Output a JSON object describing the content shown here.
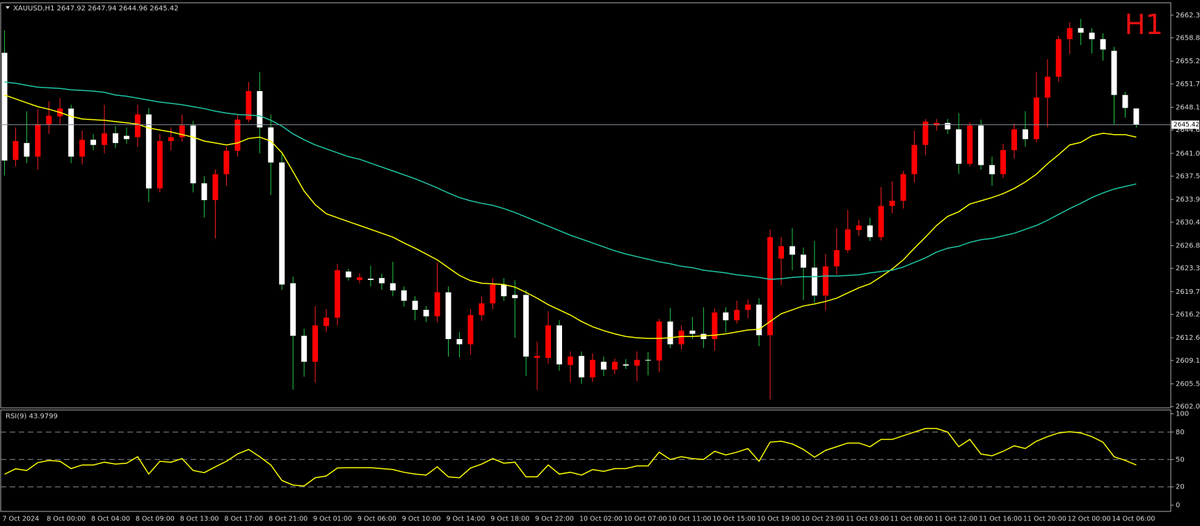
{
  "chart_data": [
    {
      "type": "candlestick",
      "title": "XAUUSD,H1  2647.92 2647.94 2644.96 2645.42",
      "timeframe_label": "H1",
      "categories": [
        "7 Oct 2024",
        null,
        null,
        null,
        "8 Oct 00:00",
        null,
        null,
        null,
        "8 Oct 04:00",
        null,
        null,
        null,
        "8 Oct 09:00",
        null,
        null,
        null,
        "8 Oct 13:00",
        null,
        null,
        null,
        "8 Oct 17:00",
        null,
        null,
        null,
        "8 Oct 21:00",
        null,
        null,
        null,
        "9 Oct 01:00",
        null,
        null,
        null,
        "9 Oct 06:00",
        null,
        null,
        null,
        "9 Oct 10:00",
        null,
        null,
        null,
        "9 Oct 14:00",
        null,
        null,
        null,
        "9 Oct 18:00",
        null,
        null,
        null,
        "9 Oct 22:00",
        null,
        null,
        null,
        "10 Oct 02:00",
        null,
        null,
        null,
        "10 Oct 07:00",
        null,
        null,
        null,
        "10 Oct 11:00",
        null,
        null,
        null,
        "10 Oct 15:00",
        null,
        null,
        null,
        "10 Oct 19:00",
        null,
        null,
        null,
        "10 Oct 23:00",
        null,
        null,
        null,
        "11 Oct 03:00",
        null,
        null,
        null,
        "11 Oct 08:00",
        null,
        null,
        null,
        "11 Oct 12:00",
        null,
        null,
        null,
        "11 Oct 16:00",
        null,
        null,
        null,
        "11 Oct 20:00",
        null,
        null,
        null,
        "12 Oct 00:00",
        null,
        null,
        null,
        "14 Oct 06:00",
        null,
        null
      ],
      "open": [
        2656.5,
        2640.0,
        2642.6,
        2640.5,
        2645.5,
        2646.7,
        2647.9,
        2640.5,
        2643.1,
        2642.3,
        2644.1,
        2643.7,
        2643.5,
        2647.0,
        2635.6,
        2642.9,
        2643.5,
        2645.3,
        2636.4,
        2633.8,
        2637.8,
        2641.4,
        2646.2,
        2650.6,
        2645.0,
        2639.6,
        2621.0,
        2612.9,
        2608.9,
        2614.4,
        2615.7,
        2622.8,
        2621.5,
        2621.7,
        2621.8,
        2621.0,
        2619.9,
        2618.3,
        2616.9,
        2615.9,
        2619.6,
        2612.4,
        2611.6,
        2616.1,
        2617.9,
        2620.8,
        2619.2,
        2619.2,
        2609.5,
        2609.5,
        2614.5,
        2608.4,
        2609.8,
        2606.5,
        2608.9,
        2607.7,
        2608.5,
        2608.3,
        2609.2,
        2609.1,
        2615.1,
        2611.6,
        2613.7,
        2613.2,
        2612.4,
        2616.5,
        2615.3,
        2616.9,
        2617.7,
        2613.0,
        2624.8,
        2626.7,
        2625.4,
        2623.4,
        2619.1,
        2623.6,
        2626.1,
        2629.2,
        2629.9,
        2628.1,
        2632.9,
        2633.7,
        2637.8,
        2642.3,
        2645.3,
        2645.7,
        2644.7,
        2639.4,
        2645.3,
        2639.2,
        2637.8,
        2641.5,
        2644.7,
        2643.2,
        2649.6,
        2652.8,
        2658.6,
        2660.3,
        2659.6,
        2658.6,
        2656.8,
        2650.0,
        2647.92
      ],
      "high": [
        2659.9,
        2645.0,
        2647.5,
        2647.8,
        2649.0,
        2649.5,
        2648.5,
        2644.5,
        2644.0,
        2648.5,
        2645.2,
        2645.0,
        2648.5,
        2648.0,
        2644.0,
        2645.0,
        2647.0,
        2646.0,
        2637.5,
        2638.5,
        2642.0,
        2647.0,
        2652.0,
        2653.5,
        2647.0,
        2641.0,
        2622.0,
        2614.0,
        2617.5,
        2617.0,
        2624.0,
        2623.2,
        2622.5,
        2623.7,
        2622.5,
        2624.3,
        2620.5,
        2619.0,
        2617.5,
        2624.2,
        2620.5,
        2613.5,
        2617.0,
        2619.0,
        2621.8,
        2621.8,
        2621.5,
        2620.0,
        2612.0,
        2616.7,
        2615.3,
        2610.5,
        2610.5,
        2610.2,
        2609.7,
        2609.4,
        2609.3,
        2610.5,
        2610.4,
        2615.5,
        2617.2,
        2614.5,
        2615.8,
        2617.3,
        2617.1,
        2617.3,
        2618.3,
        2618.5,
        2618.7,
        2629.3,
        2628.1,
        2629.5,
        2626.5,
        2627.5,
        2625.5,
        2629.5,
        2632.3,
        2630.8,
        2631.1,
        2635.8,
        2636.7,
        2638.3,
        2644.5,
        2646.3,
        2646.3,
        2646.3,
        2647.2,
        2645.8,
        2646.2,
        2640.5,
        2642.5,
        2645.6,
        2647.5,
        2653.5,
        2655.5,
        2659.1,
        2661.2,
        2661.7,
        2660.3,
        2659.5,
        2657.4,
        2650.5,
        2647.94
      ],
      "low": [
        2637.6,
        2639.0,
        2639.5,
        2638.5,
        2644.0,
        2645.5,
        2639.5,
        2639.3,
        2641.5,
        2641.0,
        2641.8,
        2642.5,
        2642.0,
        2633.5,
        2635.0,
        2641.5,
        2642.8,
        2635.0,
        2631.1,
        2627.9,
        2636.0,
        2640.5,
        2645.8,
        2641.0,
        2634.6,
        2620.0,
        2604.6,
        2606.6,
        2605.7,
        2613.5,
        2614.5,
        2621.4,
        2621.0,
        2620.5,
        2620.0,
        2619.0,
        2617.4,
        2615.3,
        2615.0,
        2615.0,
        2609.7,
        2609.6,
        2610.0,
        2615.2,
        2617.0,
        2618.3,
        2612.6,
        2606.7,
        2604.6,
        2608.6,
        2607.5,
        2605.7,
        2605.5,
        2605.8,
        2606.7,
        2607.0,
        2607.8,
        2605.9,
        2606.8,
        2607.3,
        2611.0,
        2610.8,
        2612.4,
        2611.0,
        2610.6,
        2613.4,
        2614.8,
        2615.6,
        2611.3,
        2603.1,
        2620.7,
        2623.0,
        2618.4,
        2618.0,
        2616.8,
        2622.4,
        2625.7,
        2628.3,
        2627.5,
        2627.6,
        2631.8,
        2632.5,
        2636.5,
        2640.7,
        2644.5,
        2644.0,
        2637.8,
        2639.0,
        2638.5,
        2636.0,
        2637.2,
        2640.2,
        2642.0,
        2642.7,
        2645.0,
        2652.0,
        2656.3,
        2657.7,
        2656.4,
        2655.3,
        2645.5,
        2646.5,
        2644.96
      ],
      "close": [
        2639.9,
        2642.9,
        2640.5,
        2645.5,
        2646.8,
        2647.9,
        2640.5,
        2643.1,
        2642.3,
        2644.1,
        2642.6,
        2643.2,
        2647.0,
        2635.6,
        2642.9,
        2643.5,
        2645.3,
        2636.4,
        2633.8,
        2637.8,
        2641.4,
        2646.2,
        2650.6,
        2645.0,
        2639.6,
        2620.8,
        2612.9,
        2608.9,
        2614.5,
        2615.7,
        2623.0,
        2621.9,
        2621.9,
        2621.5,
        2621.0,
        2619.9,
        2618.3,
        2616.9,
        2615.9,
        2619.6,
        2612.4,
        2611.6,
        2616.1,
        2617.9,
        2620.8,
        2619.0,
        2618.7,
        2609.7,
        2609.8,
        2614.5,
        2608.5,
        2609.7,
        2606.5,
        2609.2,
        2607.7,
        2608.9,
        2608.3,
        2609.2,
        2609.1,
        2615.1,
        2611.6,
        2613.7,
        2613.2,
        2612.4,
        2616.5,
        2615.3,
        2616.9,
        2617.7,
        2613.0,
        2628.1,
        2626.7,
        2625.4,
        2623.4,
        2619.1,
        2623.6,
        2626.1,
        2629.3,
        2629.9,
        2628.1,
        2632.9,
        2633.7,
        2637.8,
        2642.3,
        2645.9,
        2645.7,
        2644.7,
        2639.4,
        2645.3,
        2639.2,
        2637.8,
        2641.5,
        2644.7,
        2643.2,
        2649.6,
        2652.8,
        2658.6,
        2660.3,
        2659.6,
        2658.6,
        2657.0,
        2650.0,
        2648.0,
        2645.42
      ],
      "up_color": "#ff0000",
      "down_color": "#ffffff",
      "up_wick_color": "#ff2020",
      "down_wick_color": "#22cc44",
      "series": [
        {
          "color": "#ffff00",
          "values": [
            2650.0,
            2649.4,
            2648.8,
            2648.2,
            2647.8,
            2647.3,
            2646.7,
            2646.3,
            2646.2,
            2646.1,
            2645.9,
            2645.7,
            2645.5,
            2644.9,
            2644.6,
            2644.3,
            2643.9,
            2643.5,
            2642.9,
            2642.6,
            2642.3,
            2642.6,
            2643.3,
            2643.5,
            2642.9,
            2641.1,
            2638.2,
            2635.2,
            2633.1,
            2631.7,
            2631.1,
            2630.5,
            2629.9,
            2629.3,
            2628.7,
            2628.1,
            2627.2,
            2626.4,
            2625.5,
            2624.6,
            2623.4,
            2622.2,
            2621.4,
            2621.0,
            2620.9,
            2620.8,
            2620.4,
            2619.6,
            2618.7,
            2617.7,
            2616.9,
            2616.1,
            2615.1,
            2614.3,
            2613.7,
            2613.2,
            2612.8,
            2612.6,
            2612.5,
            2612.5,
            2612.6,
            2612.8,
            2612.8,
            2612.9,
            2613.0,
            2613.2,
            2613.5,
            2613.8,
            2613.9,
            2615.1,
            2616.3,
            2616.9,
            2617.5,
            2617.8,
            2618.2,
            2618.7,
            2619.5,
            2620.3,
            2620.9,
            2622.0,
            2623.2,
            2624.6,
            2626.4,
            2628.1,
            2629.9,
            2631.3,
            2632.0,
            2633.2,
            2633.7,
            2634.2,
            2634.8,
            2635.6,
            2636.6,
            2637.8,
            2639.4,
            2640.8,
            2642.3,
            2642.7,
            2643.7,
            2644.1,
            2643.9,
            2643.9,
            2643.5
          ]
        },
        {
          "color": "#20c8a8",
          "values": [
            2652.0,
            2651.8,
            2651.5,
            2651.2,
            2651.1,
            2651.0,
            2650.8,
            2650.7,
            2650.6,
            2650.4,
            2650.0,
            2649.8,
            2649.5,
            2649.2,
            2648.9,
            2648.7,
            2648.5,
            2648.2,
            2647.9,
            2647.5,
            2647.2,
            2647.0,
            2646.9,
            2646.8,
            2646.1,
            2645.2,
            2644.0,
            2643.1,
            2642.3,
            2641.7,
            2641.1,
            2640.5,
            2640.1,
            2639.5,
            2638.9,
            2638.3,
            2637.7,
            2637.1,
            2636.4,
            2635.7,
            2634.9,
            2634.2,
            2633.7,
            2633.3,
            2633.0,
            2632.5,
            2631.9,
            2631.2,
            2630.5,
            2629.8,
            2629.1,
            2628.4,
            2627.8,
            2627.2,
            2626.6,
            2626.0,
            2625.5,
            2625.1,
            2624.7,
            2624.3,
            2624.0,
            2623.6,
            2623.4,
            2623.0,
            2622.8,
            2622.6,
            2622.3,
            2622.1,
            2621.9,
            2621.6,
            2621.7,
            2621.9,
            2622.0,
            2622.0,
            2622.1,
            2622.1,
            2622.2,
            2622.3,
            2622.6,
            2622.8,
            2623.0,
            2623.5,
            2624.2,
            2624.9,
            2625.8,
            2626.4,
            2626.7,
            2627.3,
            2627.7,
            2627.9,
            2628.3,
            2628.7,
            2629.3,
            2629.9,
            2630.7,
            2631.6,
            2632.5,
            2633.3,
            2634.2,
            2634.9,
            2635.5,
            2635.9,
            2636.3
          ]
        }
      ],
      "current_price": 2645.42,
      "ylim": [
        2601.8,
        2664.2
      ],
      "yticks": [
        {
          "value": 2602,
          "label": "2602.00"
        },
        {
          "value": 2605.5,
          "label": "2605.50"
        },
        {
          "value": 2609.1,
          "label": "2609.10"
        },
        {
          "value": 2612.6,
          "label": "2612.60"
        },
        {
          "value": 2616.2,
          "label": "2616.20"
        },
        {
          "value": 2619.7,
          "label": "2619.70"
        },
        {
          "value": 2623.3,
          "label": "2623.30"
        },
        {
          "value": 2626.8,
          "label": "2626.80"
        },
        {
          "value": 2630.4,
          "label": "2630.40"
        },
        {
          "value": 2633.9,
          "label": "2633.90"
        },
        {
          "value": 2637.5,
          "label": "2637.50"
        },
        {
          "value": 2641,
          "label": "2641.00"
        },
        {
          "value": 2644.6,
          "label": "2644.60"
        },
        {
          "value": 2648.1,
          "label": "2648.10"
        },
        {
          "value": 2651.7,
          "label": "2651.70"
        },
        {
          "value": 2655.2,
          "label": "2655.20"
        },
        {
          "value": 2658.8,
          "label": "2658.80"
        },
        {
          "value": 2662.3,
          "label": "2662.30"
        }
      ],
      "grid": false
    },
    {
      "type": "line",
      "title": "RSI(9) 43.9799",
      "color": "#ffff00",
      "values": [
        33.9,
        39.8,
        38,
        46.6,
        49,
        48,
        40,
        44,
        44,
        47,
        45,
        46,
        53,
        34,
        48,
        47,
        51,
        38,
        35.6,
        42,
        48,
        56,
        61,
        53,
        44,
        27,
        22,
        21,
        30,
        32,
        40.7,
        41,
        41,
        41,
        40,
        39,
        36,
        34,
        33,
        42,
        31,
        30,
        40.7,
        45,
        51,
        46,
        47,
        31,
        31,
        44,
        34,
        36,
        33,
        39,
        37,
        40,
        40,
        43,
        43,
        58,
        50,
        53,
        51,
        50,
        59,
        55,
        58,
        62,
        48,
        69,
        70,
        67,
        61,
        52.5,
        60,
        64,
        68,
        68,
        64,
        72,
        72,
        76,
        80,
        84,
        84,
        80,
        64,
        72,
        56,
        54,
        59,
        65,
        62,
        70,
        75,
        79,
        80.5,
        79,
        75,
        69,
        53,
        49,
        43.9799
      ],
      "ylim": [
        -6.8,
        104.2
      ],
      "yticks": [
        0,
        20,
        50,
        80,
        100
      ],
      "levels": [
        20,
        50,
        80
      ],
      "grid": false
    }
  ]
}
